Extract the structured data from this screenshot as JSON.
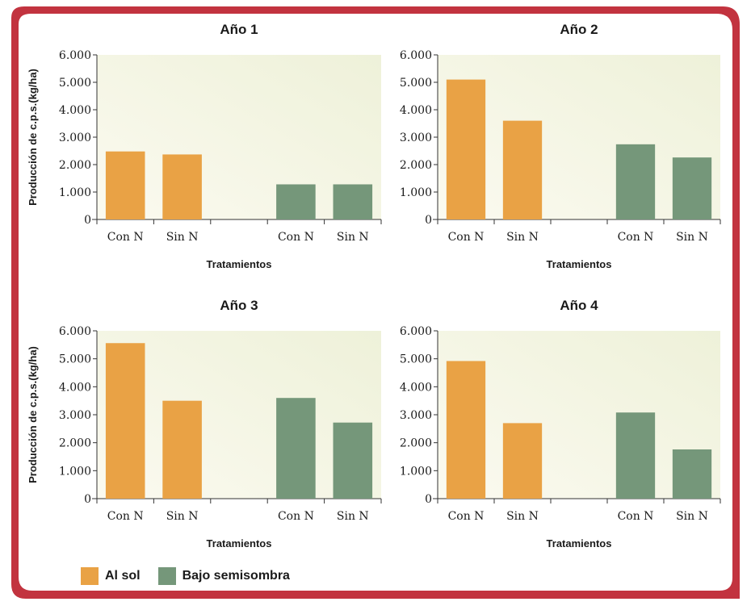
{
  "colors": {
    "frame": "#c2333f",
    "plot_bg_light": "#fbfaf0",
    "plot_bg_dark": "#eef1d9",
    "axis": "#333333"
  },
  "legend": [
    {
      "label": "Al sol",
      "color": "#e9a245"
    },
    {
      "label": "Bajo semisombra",
      "color": "#75977a"
    }
  ],
  "chart_data": [
    {
      "type": "bar",
      "title": "Año 1",
      "xlabel": "Tratamientos",
      "ylabel": "Producción de c.p.s.(kg/ha)",
      "ylim": [
        0,
        6000
      ],
      "yticks": [
        0,
        1000,
        2000,
        3000,
        4000,
        5000,
        6000
      ],
      "ytick_labels": [
        "0",
        "1.000",
        "2.000",
        "3.000",
        "4.000",
        "5.000",
        "6.000"
      ],
      "categories": [
        "Con N",
        "Sin N",
        "",
        "Con N",
        "Sin N"
      ],
      "series": [
        {
          "name": "Al sol",
          "values": [
            2480,
            2370,
            null,
            null,
            null
          ]
        },
        {
          "name": "Bajo semisombra",
          "values": [
            null,
            null,
            null,
            1280,
            1280
          ]
        }
      ]
    },
    {
      "type": "bar",
      "title": "Año 2",
      "xlabel": "Tratamientos",
      "ylabel": "",
      "ylim": [
        0,
        6000
      ],
      "yticks": [
        0,
        1000,
        2000,
        3000,
        4000,
        5000,
        6000
      ],
      "ytick_labels": [
        "0",
        "1.000",
        "2.000",
        "3.000",
        "4.000",
        "5.000",
        "6.000"
      ],
      "categories": [
        "Con N",
        "Sin N",
        "",
        "Con N",
        "Sin N"
      ],
      "series": [
        {
          "name": "Al sol",
          "values": [
            5100,
            3600,
            null,
            null,
            null
          ]
        },
        {
          "name": "Bajo semisombra",
          "values": [
            null,
            null,
            null,
            2740,
            2260
          ]
        }
      ]
    },
    {
      "type": "bar",
      "title": "Año 3",
      "xlabel": "Tratamientos",
      "ylabel": "Producción de c.p.s.(kg/ha)",
      "ylim": [
        0,
        6000
      ],
      "yticks": [
        0,
        1000,
        2000,
        3000,
        4000,
        5000,
        6000
      ],
      "ytick_labels": [
        "0",
        "1.000",
        "2.000",
        "3.000",
        "4.000",
        "5.000",
        "6.000"
      ],
      "categories": [
        "Con N",
        "Sin N",
        "",
        "Con N",
        "Sin N"
      ],
      "series": [
        {
          "name": "Al sol",
          "values": [
            5560,
            3500,
            null,
            null,
            null
          ]
        },
        {
          "name": "Bajo semisombra",
          "values": [
            null,
            null,
            null,
            3600,
            2720
          ]
        }
      ]
    },
    {
      "type": "bar",
      "title": "Año 4",
      "xlabel": "Tratamientos",
      "ylabel": "",
      "ylim": [
        0,
        6000
      ],
      "yticks": [
        0,
        1000,
        2000,
        3000,
        4000,
        5000,
        6000
      ],
      "ytick_labels": [
        "0",
        "1.000",
        "2.000",
        "3.000",
        "4.000",
        "5.000",
        "6.000"
      ],
      "categories": [
        "Con N",
        "Sin N",
        "",
        "Con N",
        "Sin N"
      ],
      "series": [
        {
          "name": "Al sol",
          "values": [
            4920,
            2700,
            null,
            null,
            null
          ]
        },
        {
          "name": "Bajo semisombra",
          "values": [
            null,
            null,
            null,
            3080,
            1760
          ]
        }
      ]
    }
  ]
}
